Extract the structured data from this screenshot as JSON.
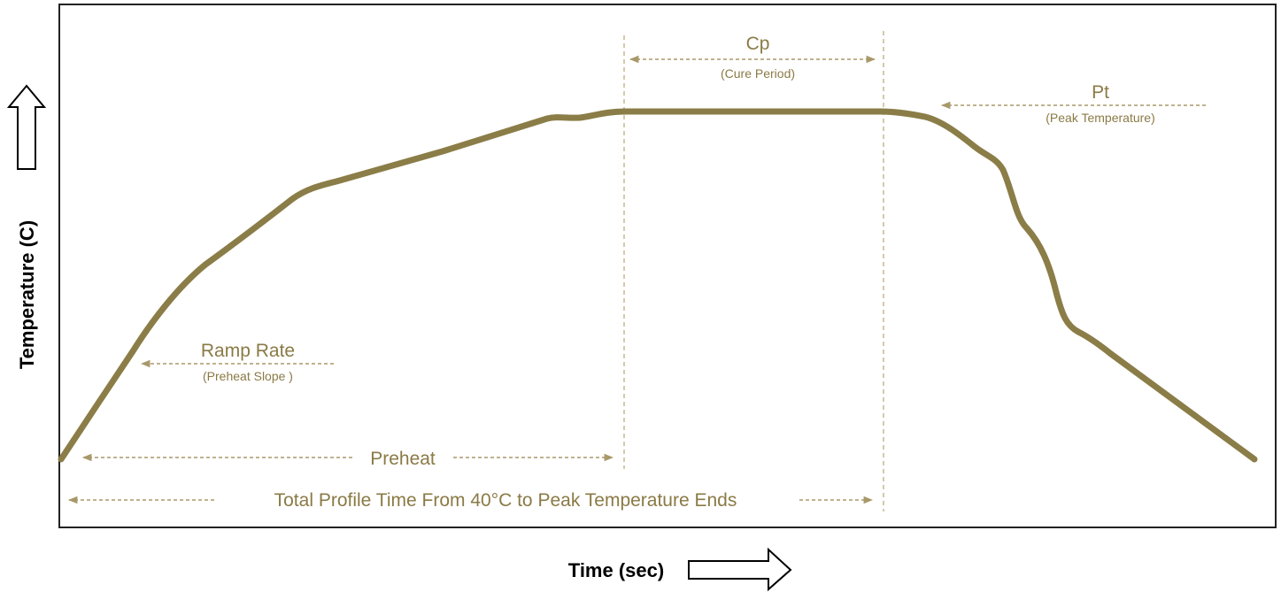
{
  "colors": {
    "curve": "#8b7d47",
    "annotation": "#a8996a",
    "text": "#8a7a45",
    "frame": "#222222"
  },
  "diagram": {
    "x_axis_label": "Time (sec)",
    "y_axis_label": "Temperature (C)",
    "annotations": {
      "cure_period_title": "Cp",
      "cure_period_sub": "(Cure Period)",
      "peak_temp_title": "Pt",
      "peak_temp_sub": "(Peak Temperature)",
      "ramp_rate_title": "Ramp Rate",
      "ramp_rate_sub": "(Preheat Slope )",
      "preheat": "Preheat",
      "total_profile": "Total Profile Time From 40°C to Peak Temperature Ends"
    }
  }
}
